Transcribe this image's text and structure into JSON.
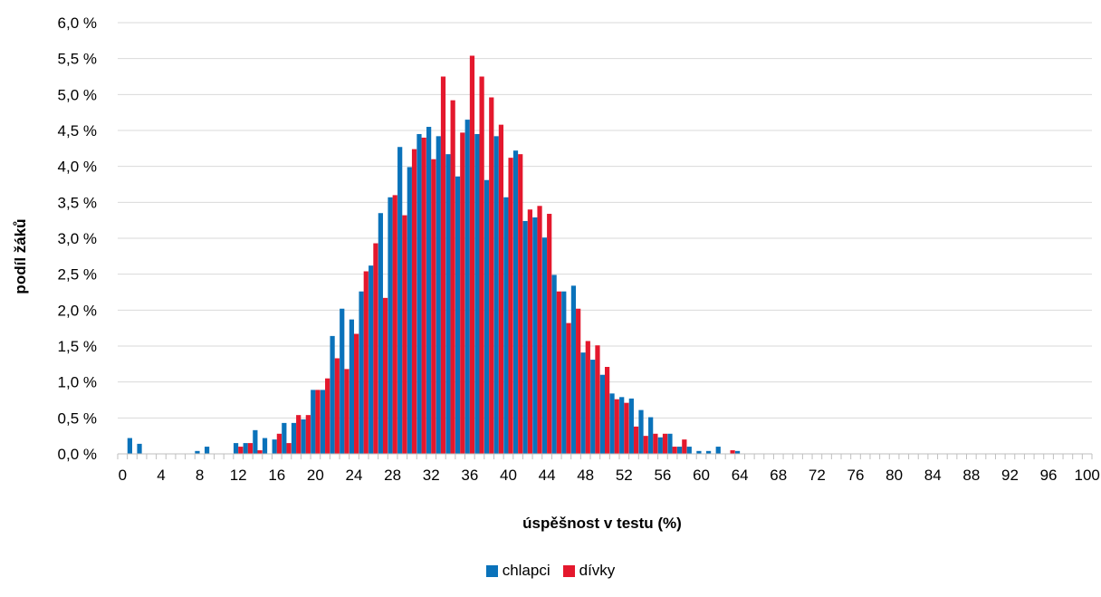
{
  "chart_data": {
    "type": "bar",
    "xlabel": "úspěšnost  v testu (%)",
    "ylabel": "podíl žáků",
    "ylim": [
      0,
      6.0
    ],
    "y_ticks": [
      "0,0 %",
      "0,5 %",
      "1,0 %",
      "1,5 %",
      "2,0 %",
      "2,5 %",
      "3,0 %",
      "3,5 %",
      "4,0 %",
      "4,5 %",
      "5,0 %",
      "5,5 %",
      "6,0 %"
    ],
    "x_ticks": [
      "0",
      "4",
      "8",
      "12",
      "16",
      "20",
      "24",
      "28",
      "32",
      "36",
      "40",
      "44",
      "48",
      "52",
      "56",
      "60",
      "64",
      "68",
      "72",
      "76",
      "80",
      "84",
      "88",
      "92",
      "96",
      "100"
    ],
    "grid": "horizontal",
    "legend_position": "bottom",
    "x": [
      0,
      1,
      2,
      3,
      4,
      5,
      6,
      7,
      8,
      9,
      10,
      11,
      12,
      13,
      14,
      15,
      16,
      17,
      18,
      19,
      20,
      21,
      22,
      23,
      24,
      25,
      26,
      27,
      28,
      29,
      30,
      31,
      32,
      33,
      34,
      35,
      36,
      37,
      38,
      39,
      40,
      41,
      42,
      43,
      44,
      45,
      46,
      47,
      48,
      49,
      50,
      51,
      52,
      53,
      54,
      55,
      56,
      57,
      58,
      59,
      60,
      61,
      62,
      63,
      64,
      65,
      66,
      67,
      68,
      69,
      70,
      71,
      72,
      73,
      74,
      75,
      76,
      77,
      78,
      79,
      80,
      81,
      82,
      83,
      84,
      85,
      86,
      87,
      88,
      89,
      90,
      91,
      92,
      93,
      94,
      95,
      96,
      97,
      98,
      99,
      100
    ],
    "series": [
      {
        "name": "chlapci",
        "color": "#0a72ba",
        "values": [
          0,
          0.22,
          0.14,
          0,
          0,
          0,
          0,
          0,
          0.04,
          0.1,
          0,
          0,
          0.15,
          0.15,
          0.33,
          0.22,
          0.2,
          0.43,
          0.43,
          0.48,
          0.89,
          0.89,
          1.64,
          2.02,
          1.87,
          2.26,
          2.62,
          3.35,
          3.57,
          4.27,
          3.99,
          4.45,
          4.55,
          4.42,
          4.17,
          3.86,
          4.65,
          4.45,
          3.81,
          4.42,
          3.57,
          4.22,
          3.24,
          3.29,
          3.01,
          2.49,
          2.26,
          2.34,
          1.41,
          1.31,
          1.1,
          0.84,
          0.79,
          0.77,
          0.61,
          0.51,
          0.23,
          0.28,
          0.1,
          0.1,
          0.04,
          0.04,
          0.1,
          0,
          0.04,
          0,
          0,
          0,
          0,
          0,
          0,
          0,
          0,
          0,
          0,
          0,
          0,
          0,
          0,
          0,
          0,
          0,
          0,
          0,
          0,
          0,
          0,
          0,
          0,
          0,
          0,
          0,
          0,
          0,
          0,
          0,
          0,
          0,
          0,
          0,
          0
        ]
      },
      {
        "name": "dívky",
        "color": "#e4182d",
        "values": [
          0,
          0,
          0,
          0,
          0,
          0,
          0,
          0,
          0,
          0,
          0,
          0,
          0.1,
          0.15,
          0.05,
          0,
          0.28,
          0.15,
          0.54,
          0.54,
          0.89,
          1.05,
          1.33,
          1.18,
          1.67,
          2.54,
          2.93,
          2.17,
          3.6,
          3.32,
          4.24,
          4.4,
          4.1,
          5.25,
          4.92,
          4.47,
          5.54,
          5.25,
          4.96,
          4.58,
          4.12,
          4.17,
          3.4,
          3.45,
          3.34,
          2.26,
          1.82,
          2.02,
          1.57,
          1.51,
          1.21,
          0.76,
          0.71,
          0.38,
          0.25,
          0.28,
          0.28,
          0.1,
          0.2,
          0,
          0,
          0,
          0,
          0.05,
          0,
          0,
          0,
          0,
          0,
          0,
          0,
          0,
          0,
          0,
          0,
          0,
          0,
          0,
          0,
          0,
          0,
          0,
          0,
          0,
          0,
          0,
          0,
          0,
          0,
          0,
          0,
          0,
          0,
          0,
          0,
          0,
          0,
          0,
          0,
          0,
          0
        ]
      }
    ]
  }
}
